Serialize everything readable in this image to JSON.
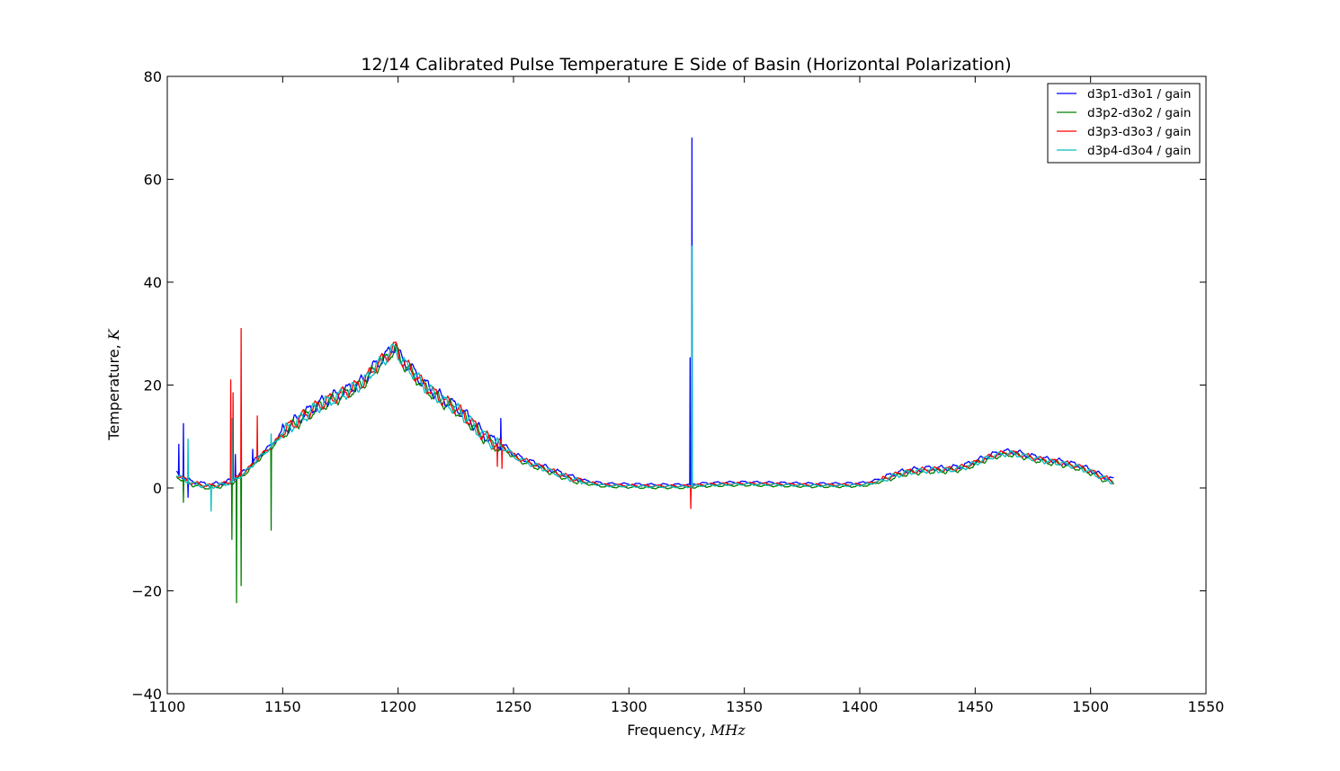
{
  "chart_data": {
    "type": "line",
    "title": "12/14 Calibrated Pulse Temperature E Side of Basin (Horizontal Polarization)",
    "xlabel": "Frequency, ",
    "xlabel_unit": "MHz",
    "ylabel": "Temperature, ",
    "ylabel_unit": "K",
    "xlim": [
      1100,
      1550
    ],
    "ylim": [
      -40,
      80
    ],
    "xticks": [
      1100,
      1150,
      1200,
      1250,
      1300,
      1350,
      1400,
      1450,
      1500,
      1550
    ],
    "yticks": [
      -40,
      -20,
      0,
      20,
      40,
      60,
      80
    ],
    "ytick_labels": [
      "−40",
      "−20",
      "0",
      "20",
      "40",
      "60",
      "80"
    ],
    "grid": false,
    "legend_position": "top-right",
    "base_curve": {
      "x": [
        1104,
        1106,
        1108,
        1110,
        1112,
        1115,
        1118,
        1122,
        1125,
        1128,
        1130,
        1133,
        1136,
        1138,
        1140,
        1142,
        1145,
        1148,
        1150,
        1155,
        1160,
        1165,
        1170,
        1175,
        1180,
        1185,
        1190,
        1195,
        1199,
        1201,
        1205,
        1210,
        1215,
        1220,
        1225,
        1230,
        1235,
        1240,
        1245,
        1248,
        1250,
        1255,
        1260,
        1265,
        1270,
        1275,
        1280,
        1285,
        1290,
        1300,
        1310,
        1320,
        1326,
        1330,
        1340,
        1350,
        1360,
        1370,
        1380,
        1390,
        1400,
        1405,
        1410,
        1415,
        1420,
        1425,
        1430,
        1435,
        1440,
        1445,
        1450,
        1455,
        1460,
        1465,
        1470,
        1475,
        1480,
        1485,
        1490,
        1495,
        1500,
        1505,
        1510
      ],
      "y": [
        2.5,
        2.0,
        1.5,
        1.0,
        0.8,
        0.5,
        0.3,
        0.5,
        0.8,
        1.2,
        1.8,
        2.8,
        4.0,
        5.0,
        6.0,
        6.8,
        8.0,
        9.5,
        10.8,
        12.5,
        14.2,
        15.8,
        17.0,
        18.0,
        19.2,
        20.5,
        23.5,
        25.5,
        27.5,
        25.0,
        23.2,
        20.5,
        18.5,
        16.8,
        15.5,
        13.5,
        11.0,
        9.0,
        8.0,
        7.2,
        6.2,
        5.2,
        4.3,
        3.5,
        2.6,
        1.8,
        1.2,
        0.8,
        0.5,
        0.4,
        0.3,
        0.3,
        0.3,
        0.5,
        0.7,
        0.8,
        0.7,
        0.6,
        0.5,
        0.5,
        0.6,
        0.9,
        1.6,
        2.4,
        3.0,
        3.3,
        3.5,
        3.5,
        3.6,
        4.0,
        4.8,
        5.8,
        6.5,
        6.8,
        6.4,
        5.8,
        5.3,
        5.0,
        4.6,
        4.0,
        3.2,
        2.0,
        1.2
      ]
    },
    "series": [
      {
        "name": "d3p1-d3o1 / gain",
        "color": "#0000ff",
        "offset": 0.35,
        "spikes": [
          [
            1105,
            8.5
          ],
          [
            1107,
            12.5
          ],
          [
            1109,
            -1.8
          ],
          [
            1129.5,
            6.5
          ],
          [
            1137,
            7.5
          ],
          [
            1244.5,
            13.5
          ],
          [
            1326.5,
            25.3
          ],
          [
            1327.3,
            68
          ]
        ]
      },
      {
        "name": "d3p2-d3o2 / gain",
        "color": "#008000",
        "offset": -0.25,
        "spikes": [
          [
            1107,
            -2.8
          ],
          [
            1128,
            -10
          ],
          [
            1130,
            -22.3
          ],
          [
            1132,
            -19
          ],
          [
            1145,
            -8.2
          ],
          [
            1449.5,
            4.5
          ]
        ]
      },
      {
        "name": "d3p3-d3o3 / gain",
        "color": "#ff0000",
        "offset": 0.1,
        "spikes": [
          [
            1127.5,
            21
          ],
          [
            1128.5,
            18.5
          ],
          [
            1132,
            31
          ],
          [
            1139,
            14
          ],
          [
            1243,
            4.2
          ],
          [
            1245,
            3.8
          ],
          [
            1326.8,
            -4
          ]
        ]
      },
      {
        "name": "d3p4-d3o4 / gain",
        "color": "#00bfbf",
        "offset": -0.05,
        "spikes": [
          [
            1109,
            9.5
          ],
          [
            1119,
            -4.5
          ],
          [
            1128,
            13.5
          ],
          [
            1145,
            10.5
          ],
          [
            1327.3,
            47
          ]
        ]
      }
    ]
  }
}
